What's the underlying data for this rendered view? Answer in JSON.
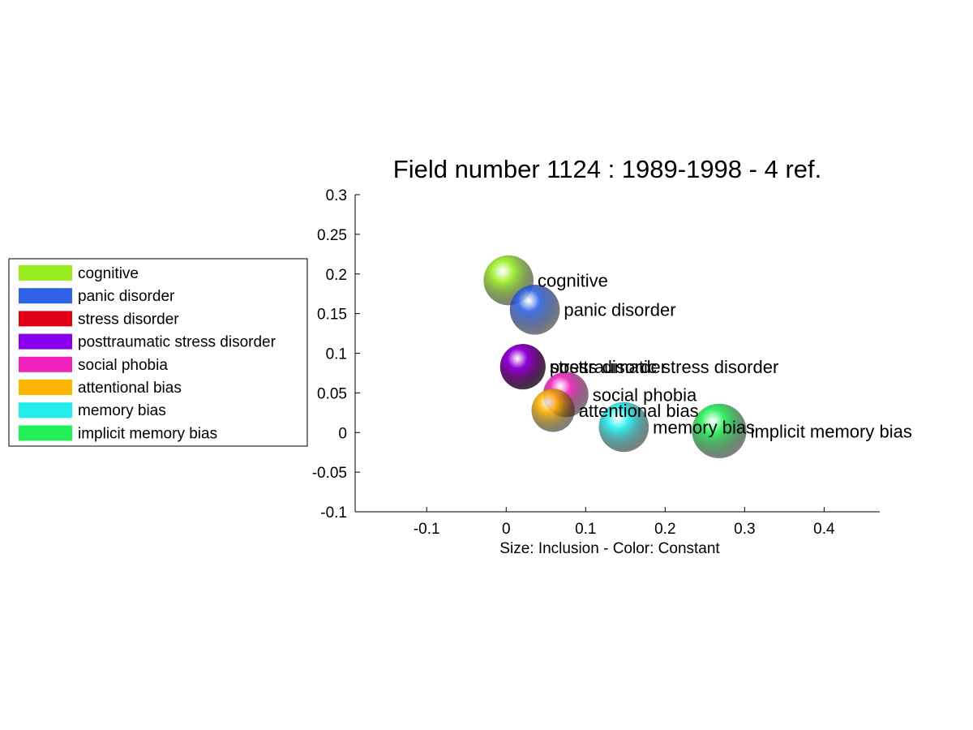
{
  "chart_data": {
    "type": "scatter",
    "title": "Field number 1124 : 1989-1998  - 4 ref.",
    "xlabel": "Size: Inclusion - Color: Constant",
    "ylabel": "",
    "xlim": [
      -0.19,
      0.47
    ],
    "ylim": [
      -0.1,
      0.3
    ],
    "xticks": [
      -0.1,
      0,
      0.1,
      0.2,
      0.3,
      0.4
    ],
    "xtick_labels": [
      "-0.1",
      "0",
      "0.1",
      "0.2",
      "0.3",
      "0.4"
    ],
    "yticks": [
      -0.1,
      -0.05,
      0,
      0.05,
      0.1,
      0.15,
      0.2,
      0.25,
      0.3
    ],
    "ytick_labels": [
      "-0.1",
      "-0.05",
      "0",
      "0.05",
      "0.1",
      "0.15",
      "0.2",
      "0.25",
      "0.3"
    ],
    "grid": false,
    "legend_position": "left",
    "series": [
      {
        "name": "cognitive",
        "x": 0.003,
        "y": 0.192,
        "size": 1.1,
        "color": "#99ee22"
      },
      {
        "name": "panic disorder",
        "x": 0.036,
        "y": 0.155,
        "size": 1.1,
        "color": "#2f63e6"
      },
      {
        "name": "stress disorder",
        "x": 0.021,
        "y": 0.083,
        "size": 1.0,
        "color": "#e00016"
      },
      {
        "name": "posttraumatic stress disorder",
        "x": 0.021,
        "y": 0.083,
        "size": 1.0,
        "color": "#8800ee"
      },
      {
        "name": "social phobia",
        "x": 0.075,
        "y": 0.048,
        "size": 1.0,
        "color": "#ee22bb"
      },
      {
        "name": "attentional bias",
        "x": 0.059,
        "y": 0.028,
        "size": 0.95,
        "color": "#ffb400"
      },
      {
        "name": "memory bias",
        "x": 0.148,
        "y": 0.007,
        "size": 1.1,
        "color": "#22eeee"
      },
      {
        "name": "implicit memory bias",
        "x": 0.268,
        "y": 0.002,
        "size": 1.2,
        "color": "#22ee55"
      }
    ]
  }
}
